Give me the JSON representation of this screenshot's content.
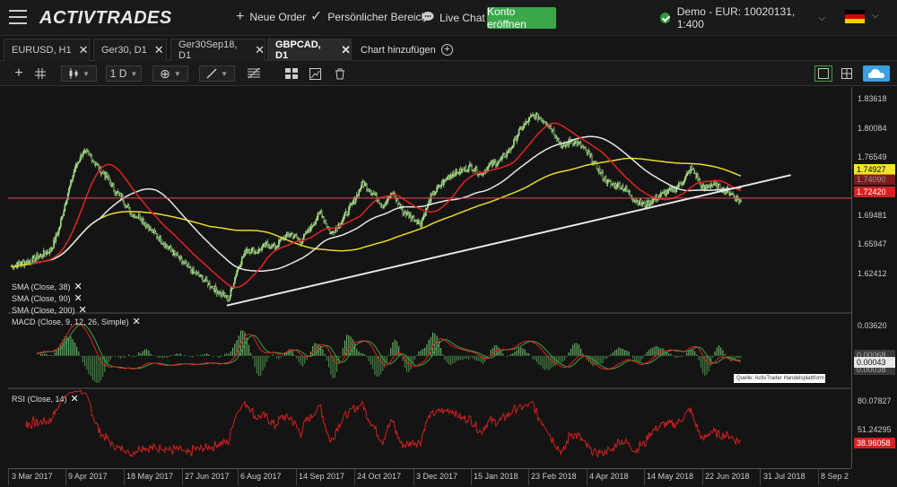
{
  "app": {
    "logo": "ACTIVTRADES",
    "nav": {
      "new_order": "Neue Order",
      "personal": "Persönlicher Bereich",
      "live_chat": "Live Chat",
      "open_account": "Konto eröffnen"
    },
    "account": "Demo - EUR: 10020131, 1:400",
    "flag_colors": [
      "#000000",
      "#dd0000",
      "#ffce00"
    ]
  },
  "tabs": [
    {
      "label": "EURUSD, H1"
    },
    {
      "label": "Ger30, D1"
    },
    {
      "label": "Ger30Sep18, D1"
    },
    {
      "label": "GBPCAD, D1",
      "active": true
    },
    {
      "label": "Chart hinzufügen"
    }
  ],
  "toolbar": {
    "timeframe": "1 D"
  },
  "colors": {
    "bull": "#a8e08a",
    "bear": "#1e1e1e",
    "sma38": "#e02424",
    "sma90": "#e8e8e8",
    "sma200": "#e6dc2a",
    "macd": "#e02424",
    "signal": "#3fa33f",
    "rsi": "#d42020",
    "accent": "#3aa84a"
  },
  "price_axis": {
    "labels": [
      "1.83618",
      "1.80084",
      "1.76549",
      "1.69481",
      "1.65947",
      "1.62412"
    ],
    "tag_yellow": "1.74927",
    "tag_red_hidden": "1.74090",
    "tag_red": "1.72420",
    "range": [
      1.59,
      1.865
    ]
  },
  "indicators": {
    "sma38": "SMA (Close, 38)",
    "sma90": "SMA (Close, 90)",
    "sma200": "SMA (Close, 200)",
    "macd": "MACD (Close, 9, 12, 26, Simple)",
    "rsi": "RSI (Close, 14)"
  },
  "macd_axis": {
    "labels": [
      "0.03620"
    ],
    "tag": "0.00043",
    "hidden_tags": [
      "0.00068",
      "0.00038"
    ]
  },
  "rsi_axis": {
    "labels": [
      "80.07827",
      "51.24295"
    ],
    "tag": "38.96058"
  },
  "source_label": "Quelle: ActivTrader Handelsplattform",
  "time_axis": [
    "3 Mar 2017",
    "9 Apr 2017",
    "18 May 2017",
    "27 Jun 2017",
    "6 Aug 2017",
    "14 Sep 2017",
    "24 Oct 2017",
    "3 Dec 2017",
    "15 Jan 2018",
    "23 Feb 2018",
    "4 Apr 2018",
    "14 May 2018",
    "22 Jun 2018",
    "31 Jul 2018",
    "8 Sep 2"
  ],
  "chart_data": {
    "type": "candlestick",
    "symbol": "GBPCAD, D1",
    "price_range": [
      1.59,
      1.865
    ],
    "anchor_closes": [
      [
        0,
        1.645
      ],
      [
        20,
        1.652
      ],
      [
        40,
        1.665
      ],
      [
        48,
        1.69
      ],
      [
        56,
        1.73
      ],
      [
        64,
        1.765
      ],
      [
        72,
        1.785
      ],
      [
        80,
        1.78
      ],
      [
        88,
        1.765
      ],
      [
        96,
        1.755
      ],
      [
        104,
        1.738
      ],
      [
        112,
        1.728
      ],
      [
        120,
        1.71
      ],
      [
        130,
        1.705
      ],
      [
        140,
        1.69
      ],
      [
        150,
        1.678
      ],
      [
        160,
        1.665
      ],
      [
        170,
        1.652
      ],
      [
        180,
        1.64
      ],
      [
        192,
        1.63
      ],
      [
        206,
        1.615
      ],
      [
        218,
        1.605
      ],
      [
        226,
        1.64
      ],
      [
        236,
        1.667
      ],
      [
        246,
        1.663
      ],
      [
        256,
        1.672
      ],
      [
        264,
        1.668
      ],
      [
        272,
        1.68
      ],
      [
        280,
        1.685
      ],
      [
        290,
        1.676
      ],
      [
        300,
        1.693
      ],
      [
        310,
        1.712
      ],
      [
        320,
        1.685
      ],
      [
        330,
        1.7
      ],
      [
        342,
        1.722
      ],
      [
        352,
        1.748
      ],
      [
        362,
        1.735
      ],
      [
        372,
        1.72
      ],
      [
        382,
        1.735
      ],
      [
        392,
        1.712
      ],
      [
        400,
        1.706
      ],
      [
        410,
        1.698
      ],
      [
        420,
        1.73
      ],
      [
        430,
        1.745
      ],
      [
        440,
        1.758
      ],
      [
        450,
        1.762
      ],
      [
        460,
        1.768
      ],
      [
        470,
        1.758
      ],
      [
        480,
        1.77
      ],
      [
        490,
        1.775
      ],
      [
        500,
        1.79
      ],
      [
        508,
        1.81
      ],
      [
        516,
        1.822
      ],
      [
        522,
        1.83
      ],
      [
        528,
        1.828
      ],
      [
        536,
        1.822
      ],
      [
        544,
        1.808
      ],
      [
        552,
        1.79
      ],
      [
        560,
        1.8
      ],
      [
        568,
        1.795
      ],
      [
        576,
        1.785
      ],
      [
        584,
        1.77
      ],
      [
        592,
        1.755
      ],
      [
        600,
        1.745
      ],
      [
        608,
        1.745
      ],
      [
        616,
        1.738
      ],
      [
        624,
        1.726
      ],
      [
        634,
        1.72
      ],
      [
        644,
        1.728
      ],
      [
        654,
        1.735
      ],
      [
        664,
        1.74
      ],
      [
        674,
        1.752
      ],
      [
        680,
        1.765
      ],
      [
        686,
        1.755
      ],
      [
        692,
        1.74
      ],
      [
        700,
        1.746
      ],
      [
        708,
        1.742
      ],
      [
        714,
        1.738
      ],
      [
        720,
        1.735
      ],
      [
        726,
        1.728
      ],
      [
        730,
        1.724
      ]
    ],
    "horizontal_line": 1.7288,
    "trendline": [
      [
        216,
        1.597
      ],
      [
        780,
        1.757
      ]
    ],
    "sma": [
      {
        "name": "SMA (Close, 38)"
      },
      {
        "name": "SMA (Close, 90)"
      },
      {
        "name": "SMA (Close, 200)"
      }
    ],
    "macd": {
      "label": "MACD (Close, 9, 12, 26, Simple)",
      "range": [
        -0.03,
        0.04
      ]
    },
    "rsi": {
      "label": "RSI (Close, 14)",
      "range": [
        10,
        95
      ]
    }
  }
}
